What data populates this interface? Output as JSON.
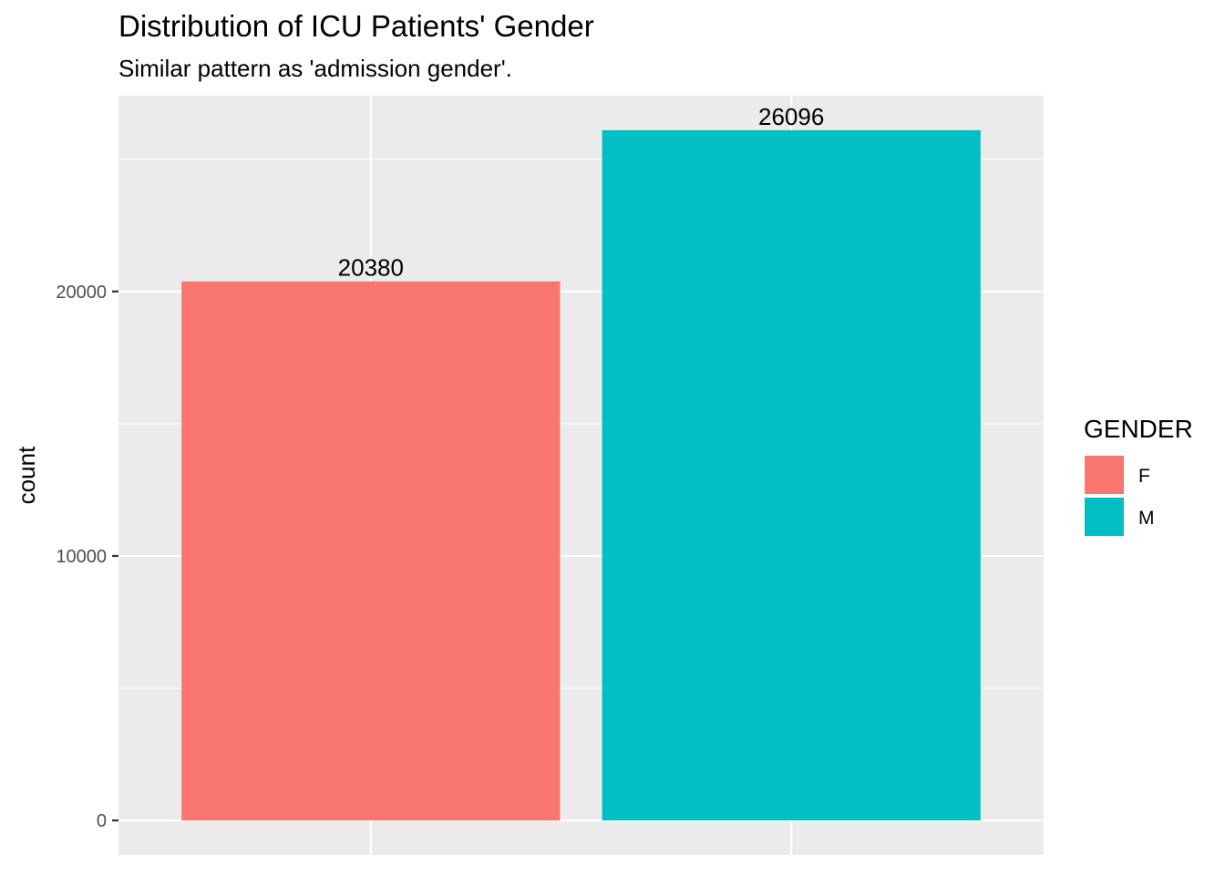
{
  "chart_data": {
    "type": "bar",
    "title": "Distribution of ICU Patients' Gender",
    "subtitle": "Similar pattern as 'admission gender'.",
    "xlabel": "",
    "ylabel": "count",
    "categories": [
      "F",
      "M"
    ],
    "values": [
      20380,
      26096
    ],
    "data_labels": [
      "20380",
      "26096"
    ],
    "colors": [
      "#F8766D",
      "#00BFC4"
    ],
    "ylim": [
      -1305,
      27401
    ],
    "y_ticks": [
      0,
      10000,
      20000
    ],
    "y_tick_labels": [
      "0",
      "10000",
      "20000"
    ],
    "y_minor_ticks": [
      5000,
      15000,
      25000
    ],
    "x_tick_labels_shown": false,
    "grid": true,
    "panel_background": "#EBEBEB",
    "grid_color": "#FFFFFF",
    "legend": {
      "title": "GENDER",
      "placement": "right",
      "entries": [
        {
          "label": "F",
          "color": "#F8766D"
        },
        {
          "label": "M",
          "color": "#00BFC4"
        }
      ]
    }
  }
}
